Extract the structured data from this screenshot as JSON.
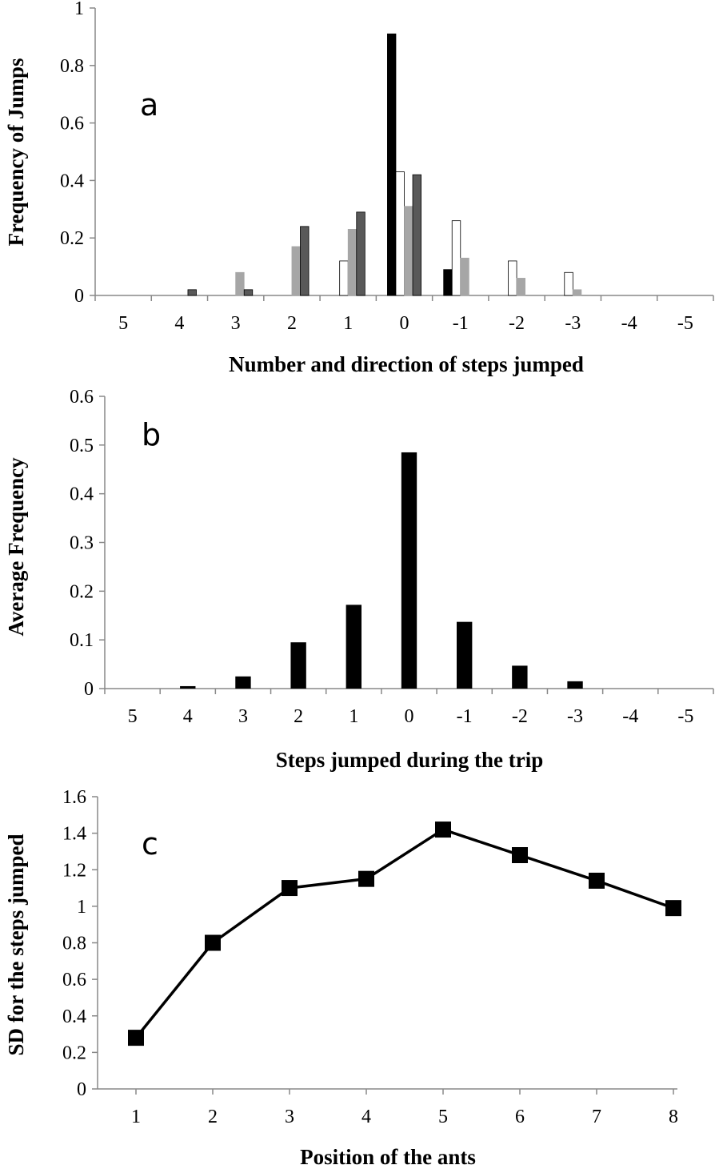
{
  "chart_data": [
    {
      "type": "bar",
      "panel_label": "a",
      "categories": [
        "5",
        "4",
        "3",
        "2",
        "1",
        "0",
        "-1",
        "-2",
        "-3",
        "-4",
        "-5"
      ],
      "series": [
        {
          "color": "#000000",
          "edge": "#000000",
          "values": [
            0,
            0,
            0,
            0,
            0,
            0.91,
            0.09,
            0,
            0,
            0,
            0
          ]
        },
        {
          "color": "#ffffff",
          "edge": "#000000",
          "values": [
            0,
            0,
            0,
            0,
            0.12,
            0.43,
            0.26,
            0.12,
            0.08,
            0,
            0
          ]
        },
        {
          "color": "#a6a6a6",
          "edge": "#a6a6a6",
          "values": [
            0,
            0,
            0.08,
            0.17,
            0.23,
            0.31,
            0.13,
            0.06,
            0.02,
            0,
            0
          ]
        },
        {
          "color": "#595959",
          "edge": "#000000",
          "values": [
            0,
            0.02,
            0.02,
            0.24,
            0.29,
            0.42,
            0,
            0,
            0,
            0,
            0
          ]
        }
      ],
      "ylim": [
        0,
        1
      ],
      "yticks": [
        "0",
        "0.2",
        "0.4",
        "0.6",
        "0.8",
        "1"
      ],
      "xlabel": "Number  and direction of steps jumped",
      "ylabel": "Frequency of Jumps",
      "grid": false,
      "legend": "none"
    },
    {
      "type": "bar",
      "panel_label": "b",
      "categories": [
        "5",
        "4",
        "3",
        "2",
        "1",
        "0",
        "-1",
        "-2",
        "-3",
        "-4",
        "-5"
      ],
      "values": [
        0,
        0.005,
        0.025,
        0.095,
        0.172,
        0.485,
        0.137,
        0.047,
        0.015,
        0,
        0
      ],
      "color": "#000000",
      "ylim": [
        0,
        0.6
      ],
      "yticks": [
        "0",
        "0.1",
        "0.2",
        "0.3",
        "0.4",
        "0.5",
        "0.6"
      ],
      "xlabel": "Steps jumped during the trip",
      "ylabel": "Average Frequency",
      "grid": false,
      "legend": "none"
    },
    {
      "type": "line",
      "panel_label": "c",
      "x": [
        "1",
        "2",
        "3",
        "4",
        "5",
        "6",
        "7",
        "8"
      ],
      "y": [
        0.28,
        0.8,
        1.1,
        1.15,
        1.42,
        1.28,
        1.14,
        0.99
      ],
      "color": "#000000",
      "marker": "square",
      "ylim": [
        0,
        1.6
      ],
      "yticks": [
        "0",
        "0.2",
        "0.4",
        "0.6",
        "0.8",
        "1",
        "1.2",
        "1.4",
        "1.6"
      ],
      "xlabel": "Position of the ants",
      "ylabel": "SD for the steps jumped",
      "grid": false,
      "legend": "none"
    }
  ]
}
